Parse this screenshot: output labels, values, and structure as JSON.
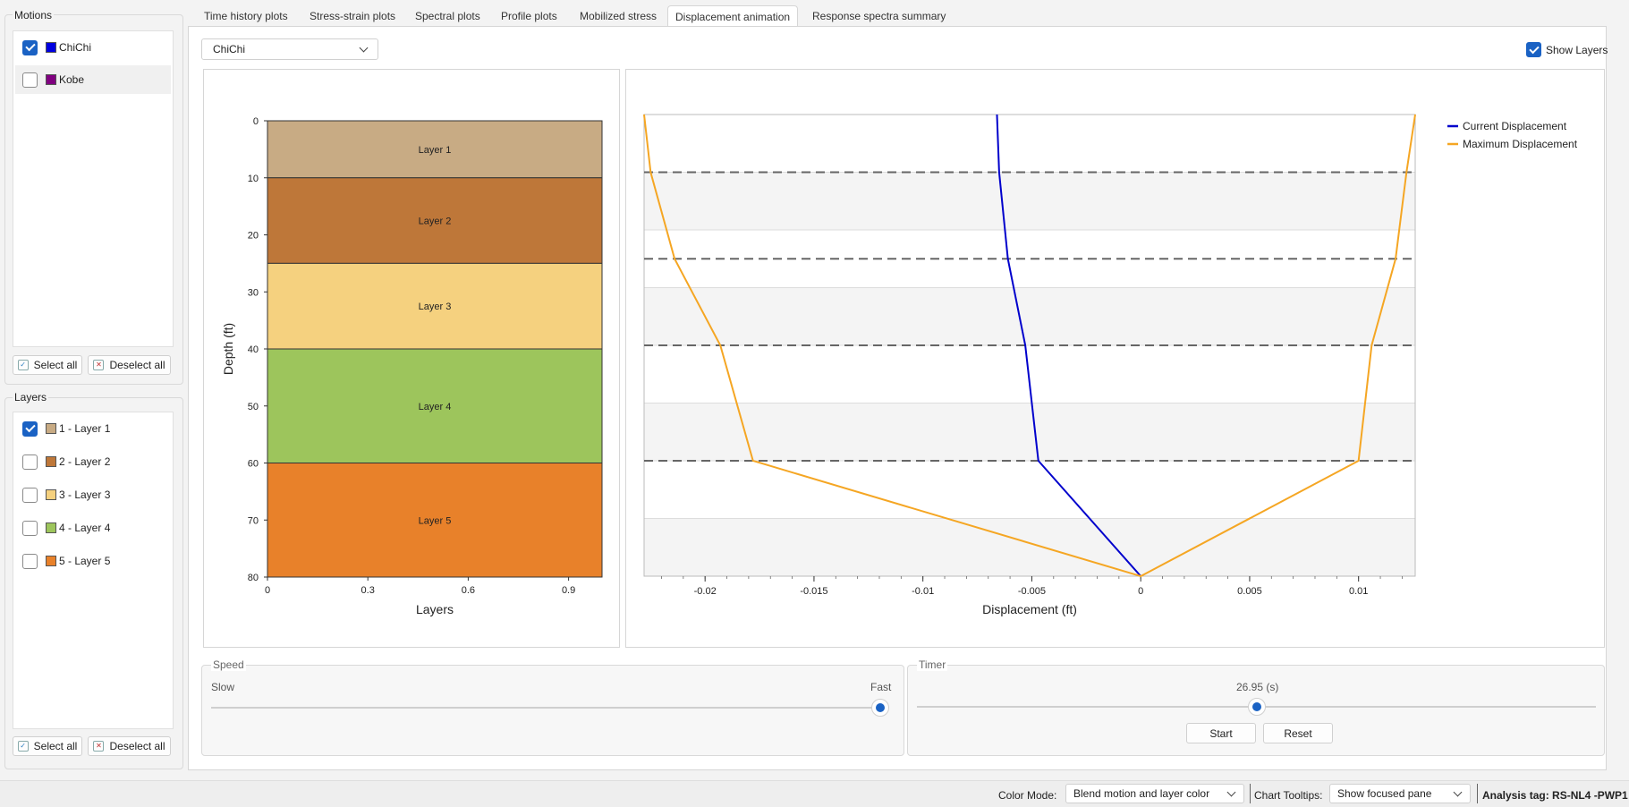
{
  "motions": {
    "title": "Motions",
    "items": [
      {
        "label": "ChiChi",
        "checked": true,
        "color": "#0000e0"
      },
      {
        "label": "Kobe",
        "checked": false,
        "color": "#800080"
      }
    ],
    "select_all": "Select all",
    "deselect_all": "Deselect all"
  },
  "layers": {
    "title": "Layers",
    "items": [
      {
        "label": "1 - Layer 1",
        "checked": true,
        "color": "#c8ab84"
      },
      {
        "label": "2 - Layer 2",
        "checked": false,
        "color": "#be7739"
      },
      {
        "label": "3 - Layer 3",
        "checked": false,
        "color": "#f5d17f"
      },
      {
        "label": "4 - Layer 4",
        "checked": false,
        "color": "#9dc55c"
      },
      {
        "label": "5 - Layer 5",
        "checked": false,
        "color": "#e8812a"
      }
    ],
    "select_all": "Select all",
    "deselect_all": "Deselect all"
  },
  "tabs": [
    {
      "label": "Time history plots",
      "active": false
    },
    {
      "label": "Stress-strain plots",
      "active": false
    },
    {
      "label": "Spectral plots",
      "active": false
    },
    {
      "label": "Profile plots",
      "active": false
    },
    {
      "label": "Mobilized stress",
      "active": false
    },
    {
      "label": "Displacement animation",
      "active": true
    },
    {
      "label": "Response spectra summary",
      "active": false
    }
  ],
  "motion_select": {
    "value": "ChiChi"
  },
  "show_layers": {
    "label": "Show Layers",
    "checked": true
  },
  "chart_data": [
    {
      "type": "bar",
      "xlabel": "Layers",
      "ylabel": "Depth (ft)",
      "xlim": [
        0,
        1
      ],
      "ylim": [
        0,
        80
      ],
      "x_ticks": [
        "0",
        "0.3",
        "0.6",
        "0.9"
      ],
      "y_ticks": [
        "0",
        "10",
        "20",
        "30",
        "40",
        "50",
        "60",
        "70",
        "80"
      ],
      "y_reversed": true,
      "layers": [
        {
          "name": "Layer 1",
          "top": 0,
          "bottom": 10,
          "color": "#c8ab84"
        },
        {
          "name": "Layer 2",
          "top": 10,
          "bottom": 25,
          "color": "#be7739"
        },
        {
          "name": "Layer 3",
          "top": 25,
          "bottom": 40,
          "color": "#f5d17f"
        },
        {
          "name": "Layer 4",
          "top": 40,
          "bottom": 60,
          "color": "#9dc55c"
        },
        {
          "name": "Layer 5",
          "top": 60,
          "bottom": 80,
          "color": "#e8812a"
        }
      ]
    },
    {
      "type": "line",
      "xlabel": "Displacement (ft)",
      "ylabel": "",
      "xlim": [
        -0.0228,
        0.0126
      ],
      "ylim": [
        0,
        80
      ],
      "y_reversed": true,
      "x_ticks": [
        "-0.02",
        "-0.015",
        "-0.01",
        "-0.005",
        "0",
        "0.005",
        "0.01"
      ],
      "layer_boundaries": [
        10,
        25,
        40,
        60
      ],
      "legend_position": "top-right",
      "series": [
        {
          "name": "Current Displacement",
          "color": "#0000cc",
          "points": [
            [
              -0.0066,
              0
            ],
            [
              -0.0065,
              10
            ],
            [
              -0.0061,
              25
            ],
            [
              -0.0053,
              40
            ],
            [
              -0.0047,
              60
            ],
            [
              0,
              80
            ]
          ]
        },
        {
          "name": "Maximum Displacement",
          "color": "#f5a623",
          "points": [
            [
              -0.0228,
              0
            ],
            [
              -0.0225,
              10
            ],
            [
              -0.0214,
              25
            ],
            [
              -0.0193,
              40
            ],
            [
              -0.0178,
              60
            ],
            [
              0,
              80
            ],
            [
              0.01,
              60
            ],
            [
              0.0106,
              40
            ],
            [
              0.0117,
              25
            ],
            [
              0.0122,
              10
            ],
            [
              0.0126,
              0
            ]
          ]
        }
      ]
    }
  ],
  "speed": {
    "title": "Speed",
    "slow": "Slow",
    "fast": "Fast",
    "value": 1.0
  },
  "timer": {
    "title": "Timer",
    "value_label": "26.95 (s)",
    "value": 0.5,
    "start": "Start",
    "reset": "Reset"
  },
  "statusbar": {
    "color_mode_label": "Color Mode:",
    "color_mode_value": "Blend motion and layer color",
    "tooltips_label": "Chart Tooltips:",
    "tooltips_value": "Show focused pane",
    "analysis_tag": "Analysis tag: RS-NL4 -PWP1"
  }
}
